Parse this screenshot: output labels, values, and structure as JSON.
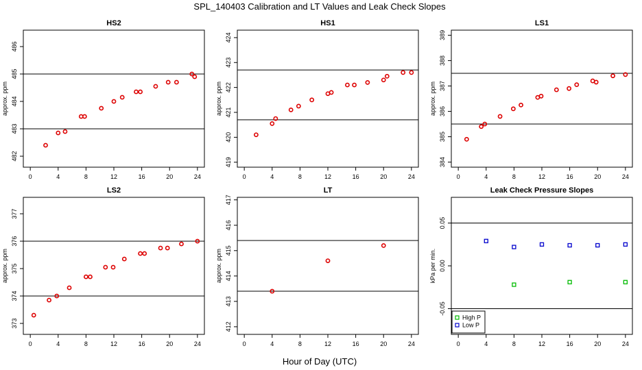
{
  "figure": {
    "title": "SPL_140403  Calibration and LT Values and Leak Check Slopes",
    "xlabel": "Hour of Day (UTC)"
  },
  "colors": {
    "point_red": "#dd0000",
    "high_p": "#00bb00",
    "low_p": "#0000cc",
    "axis": "#000000",
    "ref_line": "#000000"
  },
  "chart_data": [
    {
      "id": "hs2",
      "type": "scatter",
      "title": "HS2",
      "ylabel": "approx. ppm",
      "xlim": [
        -1,
        25
      ],
      "ylim": [
        481.6,
        486.6
      ],
      "xticks": [
        0,
        4,
        8,
        12,
        16,
        20,
        24
      ],
      "yticks": [
        482,
        483,
        484,
        485,
        486
      ],
      "hlines": [
        483,
        485
      ],
      "series": [
        {
          "name": "HS2",
          "color": "#dd0000",
          "x": [
            2.2,
            4.0,
            5.0,
            7.3,
            7.8,
            10.2,
            12.0,
            13.2,
            15.2,
            15.8,
            18.0,
            19.8,
            21.0,
            23.2,
            23.6
          ],
          "y": [
            482.4,
            482.85,
            482.9,
            483.45,
            483.45,
            483.75,
            484.0,
            484.15,
            484.35,
            484.35,
            484.55,
            484.7,
            484.7,
            485.0,
            484.9
          ]
        }
      ]
    },
    {
      "id": "hs1",
      "type": "scatter",
      "title": "HS1",
      "ylabel": "approx. ppm",
      "xlim": [
        -1,
        25
      ],
      "ylim": [
        418.8,
        424.3
      ],
      "xticks": [
        0,
        4,
        8,
        12,
        16,
        20,
        24
      ],
      "yticks": [
        419,
        420,
        421,
        422,
        423,
        424
      ],
      "hlines": [
        420.7,
        422.7
      ],
      "series": [
        {
          "name": "HS1",
          "color": "#dd0000",
          "x": [
            1.7,
            4.0,
            4.5,
            6.7,
            7.8,
            9.7,
            12.0,
            12.5,
            14.8,
            15.8,
            17.7,
            20.0,
            20.5,
            22.8,
            24.0
          ],
          "y": [
            420.1,
            420.55,
            420.75,
            421.1,
            421.25,
            421.5,
            421.75,
            421.8,
            422.1,
            422.1,
            422.2,
            422.3,
            422.45,
            422.6,
            422.6
          ]
        }
      ]
    },
    {
      "id": "ls1",
      "type": "scatter",
      "title": "LS1",
      "ylabel": "approx. ppm",
      "xlim": [
        -1,
        25
      ],
      "ylim": [
        383.8,
        389.2
      ],
      "xticks": [
        0,
        4,
        8,
        12,
        16,
        20,
        24
      ],
      "yticks": [
        384,
        385,
        386,
        387,
        388,
        389
      ],
      "hlines": [
        385.5,
        387.5
      ],
      "series": [
        {
          "name": "LS1",
          "color": "#dd0000",
          "x": [
            1.2,
            3.3,
            3.8,
            6.0,
            7.9,
            9.0,
            11.4,
            11.9,
            14.1,
            15.9,
            17.0,
            19.3,
            19.8,
            22.2,
            24.0
          ],
          "y": [
            384.9,
            385.4,
            385.5,
            385.8,
            386.1,
            386.25,
            386.55,
            386.6,
            386.85,
            386.9,
            387.05,
            387.2,
            387.15,
            387.4,
            387.45
          ]
        }
      ]
    },
    {
      "id": "ls2",
      "type": "scatter",
      "title": "LS2",
      "ylabel": "approx. ppm",
      "xlim": [
        -1,
        25
      ],
      "ylim": [
        372.6,
        377.6
      ],
      "xticks": [
        0,
        4,
        8,
        12,
        16,
        20,
        24
      ],
      "yticks": [
        373,
        374,
        375,
        376,
        377
      ],
      "hlines": [
        374,
        376
      ],
      "series": [
        {
          "name": "LS2",
          "color": "#dd0000",
          "x": [
            0.5,
            2.7,
            3.8,
            5.6,
            8.0,
            8.6,
            10.8,
            11.9,
            13.5,
            15.8,
            16.4,
            18.7,
            19.7,
            21.7,
            24.0
          ],
          "y": [
            373.3,
            373.85,
            374.0,
            374.3,
            374.7,
            374.7,
            375.05,
            375.05,
            375.35,
            375.55,
            375.55,
            375.75,
            375.75,
            375.9,
            376.0
          ]
        }
      ]
    },
    {
      "id": "lt",
      "type": "scatter",
      "title": "LT",
      "ylabel": "approx. ppm",
      "xlim": [
        -1,
        25
      ],
      "ylim": [
        411.7,
        417.1
      ],
      "xticks": [
        0,
        4,
        8,
        12,
        16,
        20,
        24
      ],
      "yticks": [
        412,
        413,
        414,
        415,
        416,
        417
      ],
      "hlines": [
        413.4,
        415.4
      ],
      "series": [
        {
          "name": "LT",
          "color": "#dd0000",
          "x": [
            4.0,
            12.0,
            20.0
          ],
          "y": [
            413.4,
            414.6,
            415.2
          ]
        }
      ]
    },
    {
      "id": "leak",
      "type": "scatter",
      "title": "Leak Check Pressure Slopes",
      "ylabel": "kPa per min.",
      "xlim": [
        -1,
        25
      ],
      "ylim": [
        -0.08,
        0.08
      ],
      "xticks": [
        0,
        4,
        8,
        12,
        16,
        20,
        24
      ],
      "yticks": [
        -0.05,
        0.0,
        0.05
      ],
      "ytick_labels": [
        "-0.05",
        "0.00",
        "0.05"
      ],
      "hlines": [
        -0.05,
        0.05
      ],
      "legend": {
        "position": "bottom-left",
        "entries": [
          "High P",
          "Low P"
        ]
      },
      "series": [
        {
          "name": "High P",
          "color": "#00bb00",
          "marker": "square",
          "x": [
            8,
            16,
            24
          ],
          "y": [
            -0.022,
            -0.019,
            -0.019
          ]
        },
        {
          "name": "Low P",
          "color": "#0000cc",
          "marker": "square",
          "x": [
            4,
            8,
            12,
            16,
            20,
            24
          ],
          "y": [
            0.029,
            0.022,
            0.025,
            0.024,
            0.024,
            0.025
          ]
        }
      ]
    }
  ]
}
